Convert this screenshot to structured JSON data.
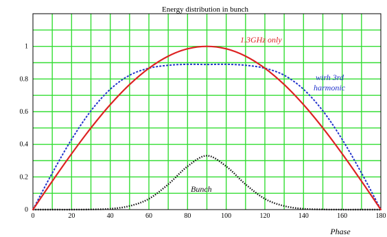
{
  "chart_data": {
    "type": "line",
    "title": "Energy distribution in bunch",
    "xlabel": "Phase",
    "ylabel": "",
    "xlim": [
      0,
      180
    ],
    "ylim": [
      0,
      1.2
    ],
    "x_ticks": [
      "0",
      "20",
      "40",
      "60",
      "80",
      "100",
      "120",
      "140",
      "160",
      "180"
    ],
    "y_ticks": [
      "0",
      "0.2",
      "0.4",
      "0.6",
      "0.8",
      "1"
    ],
    "grid": true,
    "grid_color": "#33dd33",
    "x": [
      0,
      10,
      20,
      30,
      40,
      50,
      60,
      70,
      80,
      90,
      100,
      110,
      120,
      130,
      140,
      150,
      160,
      170,
      180
    ],
    "series": [
      {
        "name": "1.3GHz only",
        "color": "#dd2222",
        "style": "solid",
        "values": [
          0,
          0.174,
          0.342,
          0.5,
          0.643,
          0.766,
          0.866,
          0.94,
          0.985,
          1.0,
          0.985,
          0.94,
          0.866,
          0.766,
          0.643,
          0.5,
          0.342,
          0.174,
          0
        ]
      },
      {
        "name": "with 3rd harmonic",
        "color": "#2233cc",
        "style": "dashed",
        "values": [
          0,
          0.224,
          0.43,
          0.605,
          0.737,
          0.823,
          0.866,
          0.884,
          0.89,
          0.889,
          0.89,
          0.884,
          0.866,
          0.823,
          0.737,
          0.605,
          0.43,
          0.224,
          0
        ]
      },
      {
        "name": "Bunch",
        "color": "#111111",
        "style": "dotted",
        "values": [
          0,
          0,
          0,
          0.001,
          0.005,
          0.022,
          0.066,
          0.155,
          0.265,
          0.33,
          0.265,
          0.155,
          0.066,
          0.022,
          0.005,
          0.001,
          0,
          0,
          0
        ]
      }
    ],
    "annotations": [
      {
        "text": "1.3GHz only",
        "color": "#dd2222"
      },
      {
        "text": "wirh 3rd",
        "color": "#2233cc"
      },
      {
        "text": "harmonic",
        "color": "#2233cc"
      },
      {
        "text": "Bunch",
        "color": "#111111"
      }
    ]
  }
}
